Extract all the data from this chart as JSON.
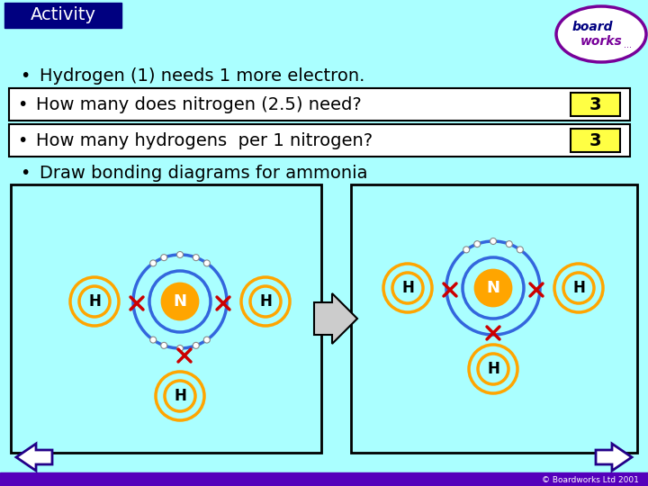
{
  "bg_color": "#AAFFFF",
  "title_box_color": "#000080",
  "title_text": "Activity",
  "title_text_color": "#FFFFFF",
  "bullet1": "Hydrogen (1) needs 1 more electron.",
  "bullet2": "How many does nitrogen (2.5) need?",
  "bullet3": "How many hydrogens  per 1 nitrogen?",
  "bullet4": "Draw bonding diagrams for ammonia",
  "answer1": "3",
  "answer2": "3",
  "answer_box_color": "#FFFF44",
  "answer_text_color": "#000000",
  "white_box_color": "#FFFFFF",
  "white_box_border": "#000000",
  "orange_color": "#FFA500",
  "blue_color": "#3366DD",
  "dark_navy": "#220088",
  "red_x_color": "#CC0000",
  "bottom_bar_color": "#5500BB",
  "copyright_text": "© Boardworks Ltd 2001",
  "arrow_body_color": "#FFFFFF",
  "arrow_border_color": "#5500BB",
  "logo_oval_color": "#770099",
  "logo_bg": "#FFFFFF"
}
